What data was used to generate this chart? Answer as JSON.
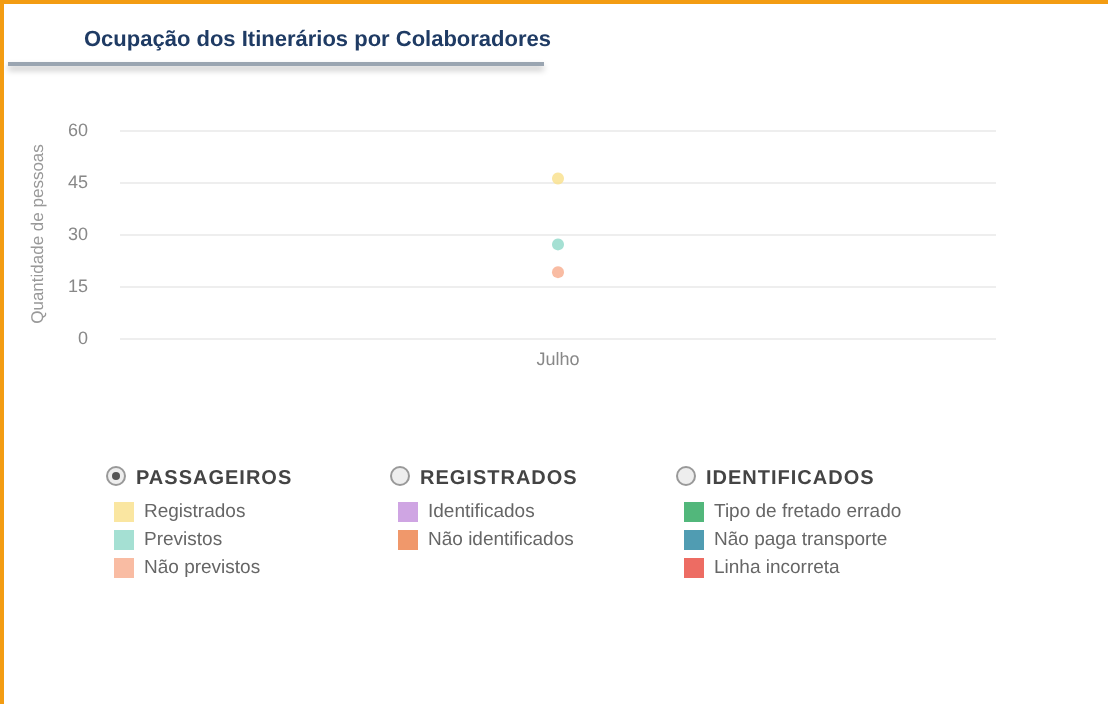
{
  "chart_data": {
    "type": "scatter",
    "title": "Ocupação dos Itinerários por Colaboradores",
    "ylabel": "Quantidade de pessoas",
    "categories": [
      "Julho"
    ],
    "series": [
      {
        "name": "Registrados",
        "color": "#f9e08a",
        "values": [
          46
        ]
      },
      {
        "name": "Previstos",
        "color": "#8fd8c8",
        "values": [
          27
        ]
      },
      {
        "name": "Não previstos",
        "color": "#f7ab8c",
        "values": [
          19
        ]
      },
      {
        "name": "Identificados",
        "color": "#c38fdc",
        "values": [
          null
        ]
      },
      {
        "name": "Não identificados",
        "color": "#ec7e46",
        "values": [
          null
        ]
      },
      {
        "name": "Tipo de fretado errado",
        "color": "#27a55a",
        "values": [
          null
        ]
      },
      {
        "name": "Não paga transporte",
        "color": "#24839f",
        "values": [
          null
        ]
      },
      {
        "name": "Linha incorreta",
        "color": "#e8473c",
        "values": [
          null
        ]
      }
    ],
    "annotations": [
      "PASSAGEIROS",
      "REGISTRADOS",
      "IDENTIFICADOS"
    ],
    "ylim": [
      0,
      60
    ],
    "yticks": [
      0,
      15,
      30,
      45,
      60
    ],
    "grid": "y",
    "marker": "circle",
    "legend": "bottom left"
  }
}
